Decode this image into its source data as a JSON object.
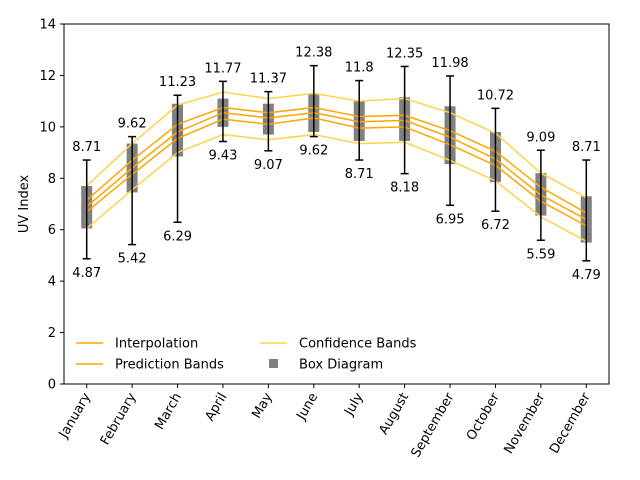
{
  "chart_data": {
    "type": "box",
    "title": "",
    "xlabel": "",
    "ylabel": "UV Index",
    "ylim": [
      0,
      14
    ],
    "yticks": [
      0,
      2,
      4,
      6,
      8,
      10,
      12,
      14
    ],
    "grid": false,
    "legend_position": "lower-left",
    "categories": [
      "January",
      "February",
      "March",
      "April",
      "May",
      "June",
      "July",
      "August",
      "September",
      "October",
      "November",
      "December"
    ],
    "box": {
      "min": [
        4.87,
        5.42,
        6.29,
        9.43,
        9.07,
        9.62,
        8.71,
        8.18,
        6.95,
        6.72,
        5.59,
        4.79
      ],
      "max": [
        8.71,
        9.62,
        11.23,
        11.77,
        11.37,
        12.38,
        11.8,
        12.35,
        11.98,
        10.72,
        9.09,
        8.71
      ],
      "q1": [
        6.05,
        7.45,
        8.85,
        10.0,
        9.7,
        9.8,
        9.45,
        9.45,
        8.55,
        7.85,
        6.55,
        5.5
      ],
      "q3": [
        7.7,
        9.35,
        10.9,
        11.1,
        10.9,
        11.3,
        11.0,
        11.15,
        10.8,
        9.8,
        8.2,
        7.3
      ]
    },
    "max_labels": [
      "8.71",
      "9.62",
      "11.23",
      "11.77",
      "11.37",
      "12.38",
      "11.8",
      "12.35",
      "11.98",
      "10.72",
      "9.09",
      "8.71"
    ],
    "min_labels": [
      "4.87",
      "5.42",
      "6.29",
      "9.43",
      "9.07",
      "9.62",
      "8.71",
      "8.18",
      "6.95",
      "6.72",
      "5.59",
      "4.79"
    ],
    "series": [
      {
        "name": "Interpolation",
        "kind": "interpolation",
        "color": "#ffa500",
        "values": [
          6.9,
          8.4,
          9.8,
          10.55,
          10.35,
          10.55,
          10.2,
          10.25,
          9.6,
          8.75,
          7.35,
          6.4
        ]
      },
      {
        "name": "Prediction Bands",
        "kind": "prediction-upper",
        "color": "#ffa500",
        "values": [
          7.15,
          8.7,
          10.1,
          10.75,
          10.55,
          10.75,
          10.4,
          10.45,
          9.85,
          9.05,
          7.65,
          6.65
        ]
      },
      {
        "name": "",
        "kind": "prediction-lower",
        "color": "#ffa500",
        "values": [
          6.7,
          8.15,
          9.55,
          10.3,
          10.1,
          10.35,
          9.95,
          10.0,
          9.3,
          8.5,
          7.1,
          6.15
        ]
      },
      {
        "name": "Confidence Bands",
        "kind": "confidence-upper",
        "color": "#ffd24d",
        "values": [
          7.7,
          9.35,
          10.85,
          11.35,
          11.1,
          11.3,
          11.0,
          11.1,
          10.55,
          9.75,
          8.2,
          7.25
        ]
      },
      {
        "name": "",
        "kind": "confidence-lower",
        "color": "#ffd24d",
        "values": [
          6.05,
          7.55,
          9.0,
          9.7,
          9.5,
          9.7,
          9.35,
          9.4,
          8.7,
          7.9,
          6.5,
          5.55
        ]
      }
    ],
    "legend": [
      {
        "label": "Interpolation",
        "symbol": "line",
        "color": "#ffa500"
      },
      {
        "label": "Prediction Bands",
        "symbol": "line",
        "color": "#ffa500"
      },
      {
        "label": "Confidence Bands",
        "symbol": "line",
        "color": "#ffd24d"
      },
      {
        "label": "Box Diagram",
        "symbol": "square",
        "color": "#808080"
      }
    ],
    "box_color": "#808080",
    "whisker_color": "#000000"
  }
}
